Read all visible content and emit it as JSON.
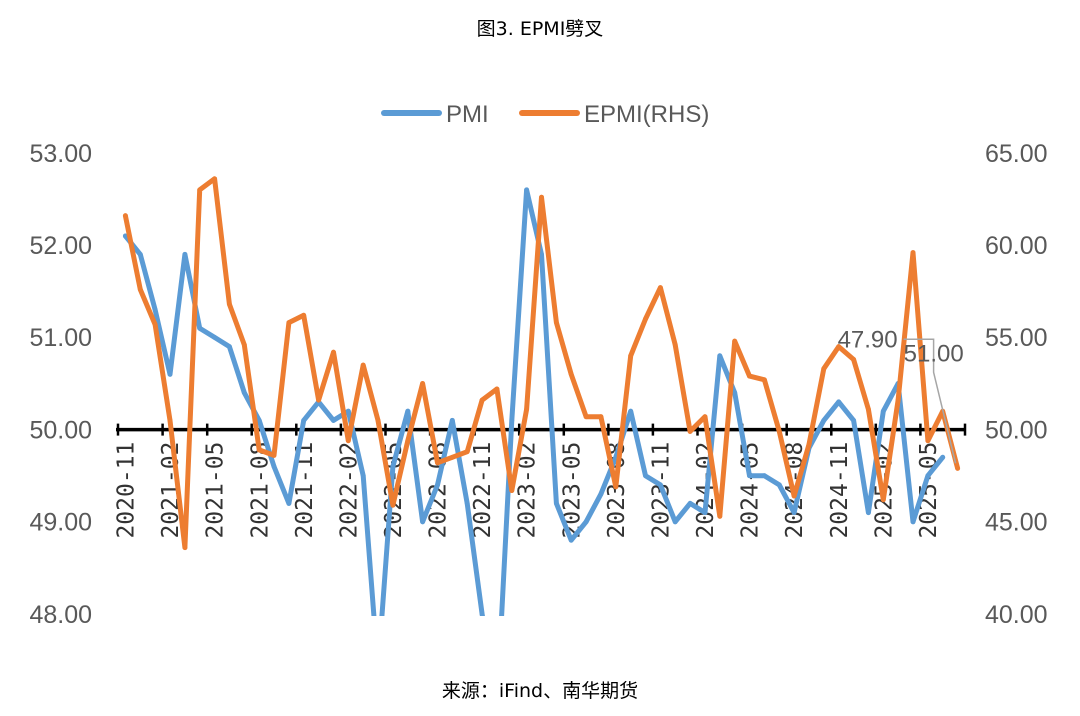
{
  "chart_data": {
    "type": "line",
    "title": "图3. EPMI劈叉",
    "source": "来源：iFind、南华期货",
    "legend": "top",
    "grid": false,
    "x": [
      "2020-11",
      "2020-12",
      "2021-01",
      "2021-02",
      "2021-03",
      "2021-04",
      "2021-05",
      "2021-06",
      "2021-07",
      "2021-08",
      "2021-09",
      "2021-10",
      "2021-11",
      "2021-12",
      "2022-01",
      "2022-02",
      "2022-03",
      "2022-04",
      "2022-05",
      "2022-06",
      "2022-07",
      "2022-08",
      "2022-09",
      "2022-10",
      "2022-11",
      "2022-12",
      "2023-01",
      "2023-02",
      "2023-03",
      "2023-04",
      "2023-05",
      "2023-06",
      "2023-07",
      "2023-08",
      "2023-09",
      "2023-10",
      "2023-11",
      "2023-12",
      "2024-01",
      "2024-02",
      "2024-03",
      "2024-04",
      "2024-05",
      "2024-06",
      "2024-07",
      "2024-08",
      "2024-09",
      "2024-10",
      "2024-11",
      "2024-12",
      "2025-01",
      "2025-02",
      "2025-03",
      "2025-04",
      "2025-05",
      "2025-06",
      "2025-07"
    ],
    "x_tick_labels": [
      "2020-11",
      "2021-02",
      "2021-05",
      "2021-08",
      "2021-11",
      "2022-02",
      "2022-05",
      "2022-08",
      "2022-11",
      "2023-02",
      "2023-05",
      "2023-08",
      "2023-11",
      "2024-02",
      "2024-05",
      "2024-08",
      "2024-11",
      "2025-02",
      "2025-05"
    ],
    "x_axis_crosses_at": 50,
    "y_left": {
      "ticks": [
        "53.00",
        "52.00",
        "51.00",
        "50.00",
        "49.00",
        "48.00"
      ],
      "ylim": [
        48,
        53
      ]
    },
    "y_right": {
      "ticks": [
        "65.00",
        "60.00",
        "55.00",
        "50.00",
        "45.00",
        "40.00"
      ],
      "ylim": [
        40,
        65
      ]
    },
    "series": [
      {
        "name": "PMI",
        "axis": "left",
        "color": "#5B9BD5",
        "values": [
          52.1,
          51.9,
          51.3,
          50.6,
          51.9,
          51.1,
          51.0,
          50.9,
          50.4,
          50.1,
          49.6,
          49.2,
          50.1,
          50.3,
          50.1,
          50.2,
          49.5,
          47.4,
          49.6,
          50.2,
          49.0,
          49.4,
          50.1,
          49.2,
          48.0,
          47.0,
          50.1,
          52.6,
          51.9,
          49.2,
          48.8,
          49.0,
          49.3,
          49.7,
          50.2,
          49.5,
          49.4,
          49.0,
          49.2,
          49.1,
          50.8,
          50.4,
          49.5,
          49.5,
          49.4,
          49.1,
          49.8,
          50.1,
          50.3,
          50.1,
          49.1,
          50.2,
          50.5,
          49.0,
          49.5,
          49.7,
          null
        ]
      },
      {
        "name": "EPMI(RHS)",
        "axis": "right",
        "color": "#ED7D31",
        "values": [
          61.6,
          57.6,
          55.7,
          50.5,
          43.6,
          63.0,
          63.6,
          56.8,
          54.6,
          48.9,
          48.6,
          55.8,
          56.2,
          51.6,
          54.2,
          49.4,
          53.5,
          50.5,
          45.9,
          49.4,
          52.5,
          48.2,
          48.5,
          48.8,
          51.6,
          52.2,
          46.7,
          51.1,
          62.6,
          55.8,
          53.0,
          50.7,
          50.7,
          46.9,
          54.0,
          56.0,
          57.7,
          54.6,
          49.9,
          50.7,
          45.3,
          54.8,
          52.9,
          52.7,
          49.9,
          46.4,
          49.2,
          53.3,
          54.5,
          53.8,
          51.1,
          46.2,
          51.6,
          59.6,
          49.4,
          51.0,
          47.9
        ]
      }
    ],
    "data_labels": [
      {
        "series": 1,
        "x": "2025-07",
        "text": "47.90"
      },
      {
        "series": 1,
        "x": "2025-06",
        "text": "51.00"
      }
    ]
  },
  "colors": {
    "axis": "#000000",
    "axis_text": "#595959",
    "leader": "#A6A6A6"
  }
}
